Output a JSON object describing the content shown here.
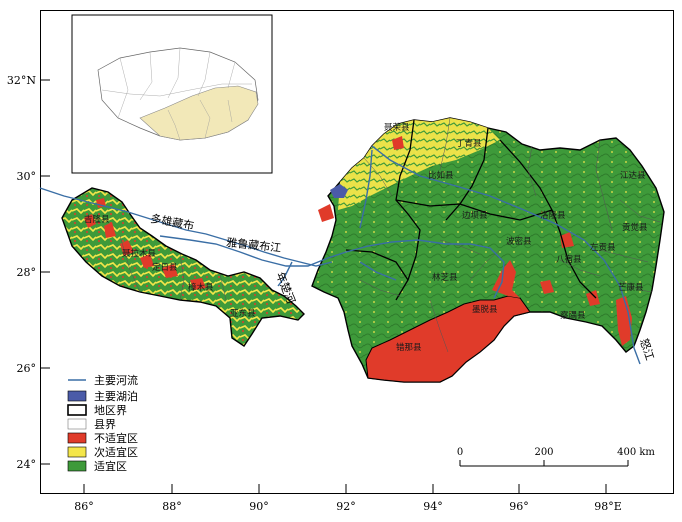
{
  "axes": {
    "lon_ticks": [
      {
        "label": "86°"
      },
      {
        "label": "88°"
      },
      {
        "label": "90°"
      },
      {
        "label": "92°"
      },
      {
        "label": "94°"
      },
      {
        "label": "96°"
      },
      {
        "label": "98°E"
      }
    ],
    "lat_ticks": [
      {
        "label": "32°N"
      },
      {
        "label": "30°"
      },
      {
        "label": "28°"
      },
      {
        "label": "26°"
      },
      {
        "label": "24°"
      }
    ]
  },
  "rivers": {
    "duoxiong": "多雄藏布",
    "yarlung": "雅鲁藏布江",
    "nianchu": "年楚河",
    "nujiang": "怒江"
  },
  "counties": [
    "聂荣县",
    "比如县",
    "丁青县",
    "江达县",
    "贡觉县",
    "芒康县",
    "墨脱县",
    "错那县",
    "亚东县",
    "聂拉木县",
    "吉隆县",
    "定日县",
    "樟木县",
    "察隅县",
    "林芝县",
    "波密县",
    "边坝县",
    "洛隆县",
    "八宿县",
    "左贡县"
  ],
  "legend": {
    "items": [
      {
        "label": "主要河流",
        "kind": "line",
        "color": "#3a6ea5"
      },
      {
        "label": "主要湖泊",
        "kind": "box",
        "color": "#4b5ba8"
      },
      {
        "label": "地区界",
        "kind": "box",
        "color": "#ffffff"
      },
      {
        "label": "县界",
        "kind": "box",
        "color": "#ffffff"
      },
      {
        "label": "不适宜区",
        "kind": "box",
        "color": "#e03b2a"
      },
      {
        "label": "次适宜区",
        "kind": "box",
        "color": "#f4e64a"
      },
      {
        "label": "适宜区",
        "kind": "box",
        "color": "#3e9a3a"
      }
    ]
  },
  "scale": {
    "ticks": [
      "0",
      "200",
      "400 km"
    ]
  },
  "colors": {
    "unsuitable": "#e03b2a",
    "subsuitable": "#f4e64a",
    "suitable": "#3e9a3a",
    "river": "#3a6ea5",
    "lake": "#4b5ba8",
    "inset_fill": "#f2e8b8"
  }
}
